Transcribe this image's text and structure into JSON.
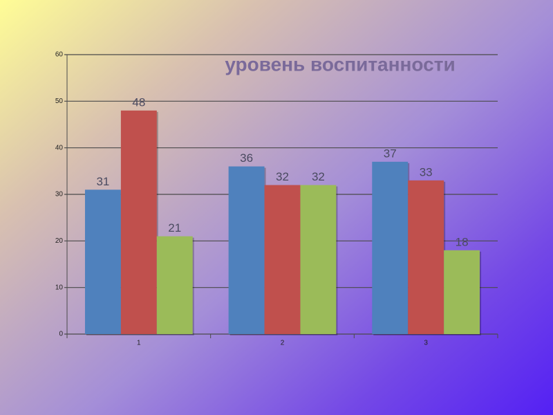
{
  "chart_data": {
    "type": "bar",
    "title": "уровень воспитанности",
    "categories": [
      "1",
      "2",
      "3"
    ],
    "series": [
      {
        "color": "#4f81bd",
        "values": [
          31,
          36,
          37
        ]
      },
      {
        "color": "#c0504d",
        "values": [
          48,
          32,
          33
        ]
      },
      {
        "color": "#9bbb59",
        "values": [
          21,
          32,
          18
        ]
      }
    ],
    "ylim": [
      0,
      60
    ],
    "yticks": [
      0,
      10,
      20,
      30,
      40,
      50,
      60
    ],
    "grid": true,
    "value_labels_shown": true
  }
}
